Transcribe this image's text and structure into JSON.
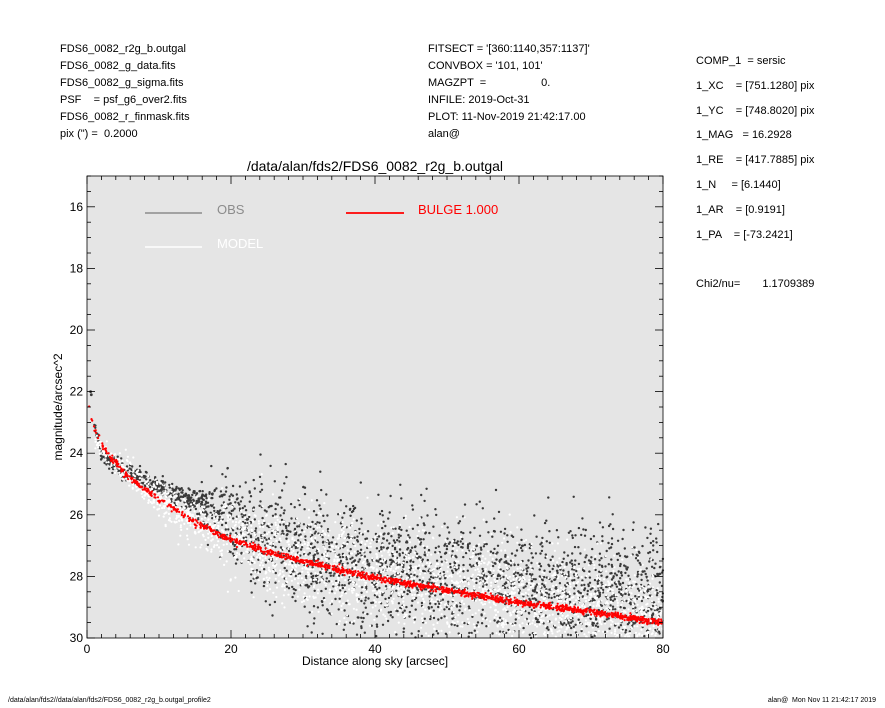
{
  "header_left": [
    "FDS6_0082_r2g_b.outgal",
    "FDS6_0082_g_data.fits",
    "FDS6_0082_g_sigma.fits",
    "PSF    = psf_g6_over2.fits",
    "FDS6_0082_r_finmask.fits",
    "pix (\") =  0.2000"
  ],
  "header_mid": [
    "FITSECT = '[360:1140,357:1137]'",
    "CONVBOX = '101, 101'",
    "MAGZPT  =                  0.",
    "INFILE: 2019-Oct-31",
    "PLOT: 11-Nov-2019 21:42:17.00",
    "alan@"
  ],
  "components": [
    "COMP_1  = sersic",
    "1_XC    = [751.1280] pix",
    "1_YC    = [748.8020] pix",
    "1_MAG   = 16.2928",
    "1_RE    = [417.7885] pix",
    "1_N     = [6.1440]",
    "1_AR    = [0.9191]",
    "1_PA    = [-73.2421]"
  ],
  "chi2": {
    "label": "Chi2/nu=",
    "value": "1.1709389"
  },
  "footer": {
    "left": "/data/alan/fds2//data/alan/fds2/FDS6_0082_r2g_b.outgal_profile2",
    "right": "alan@  Mon Nov 11 21:42:17 2019"
  },
  "colors": {
    "obs": "#3a3a3a",
    "model": "#ffffff",
    "bulge": "#ff0000",
    "panel": "#e5e5e5",
    "legend_obs": "#8c8c8c"
  },
  "chart_data": {
    "type": "scatter",
    "title": "/data/alan/fds2/FDS6_0082_r2g_b.outgal",
    "xlabel": "Distance along sky [arcsec]",
    "ylabel": "magnitude/arcsec^2",
    "xlim": [
      0,
      80
    ],
    "ylim": [
      30,
      15
    ],
    "y_inverted": true,
    "xticks": [
      0,
      20,
      40,
      60,
      80
    ],
    "yticks": [
      16,
      18,
      20,
      22,
      24,
      26,
      28,
      30
    ],
    "grid": false,
    "legend": [
      {
        "label": "OBS",
        "color": "#8c8c8c"
      },
      {
        "label": "MODEL",
        "color": "#ffffff"
      },
      {
        "label": "BULGE  1.000",
        "color": "#ff0000"
      }
    ],
    "series": [
      {
        "name": "OBS",
        "x": [
          0.5,
          0.6,
          1.0,
          1.5,
          2.0,
          3.0,
          4.0,
          5.0,
          6.0,
          8.0,
          10.0,
          12.0,
          14.0,
          16.0,
          20.0,
          25.0,
          30.0,
          40.0,
          50.0,
          60.0,
          70.0,
          80.0
        ],
        "y": [
          22.0,
          22.1,
          23.1,
          23.5,
          24.0,
          24.2,
          24.4,
          24.55,
          24.7,
          24.85,
          25.05,
          25.3,
          25.5,
          25.7,
          26.2,
          26.8,
          27.2,
          27.7,
          28.0,
          28.3,
          28.5,
          28.6
        ],
        "scatter_sd": [
          0,
          0,
          0.1,
          0.12,
          0.15,
          0.15,
          0.15,
          0.15,
          0.15,
          0.15,
          0.15,
          0.15,
          0.2,
          0.35,
          0.7,
          1.0,
          1.0,
          1.0,
          1.0,
          1.0,
          1.0,
          1.0
        ]
      },
      {
        "name": "MODEL",
        "x": [
          1,
          3,
          5,
          10,
          15,
          20,
          30,
          40,
          50,
          60,
          70,
          80
        ],
        "y": [
          23.5,
          24.2,
          24.5,
          25.5,
          26.2,
          26.7,
          27.4,
          27.9,
          28.3,
          28.7,
          29.0,
          29.3
        ],
        "scatter_sd": [
          0.1,
          0.15,
          0.2,
          0.3,
          0.4,
          0.6,
          0.8,
          0.8,
          0.8,
          0.8,
          0.8,
          0.8
        ]
      },
      {
        "name": "BULGE  1.000",
        "x": [
          0.2,
          0.5,
          1,
          2,
          3,
          4,
          5,
          7,
          10,
          15,
          20,
          25,
          30,
          40,
          50,
          60,
          70,
          80
        ],
        "y": [
          22.3,
          22.8,
          23.2,
          23.7,
          24.05,
          24.3,
          24.6,
          25.0,
          25.5,
          26.25,
          26.8,
          27.2,
          27.5,
          28.05,
          28.45,
          28.85,
          29.15,
          29.5
        ]
      }
    ]
  }
}
